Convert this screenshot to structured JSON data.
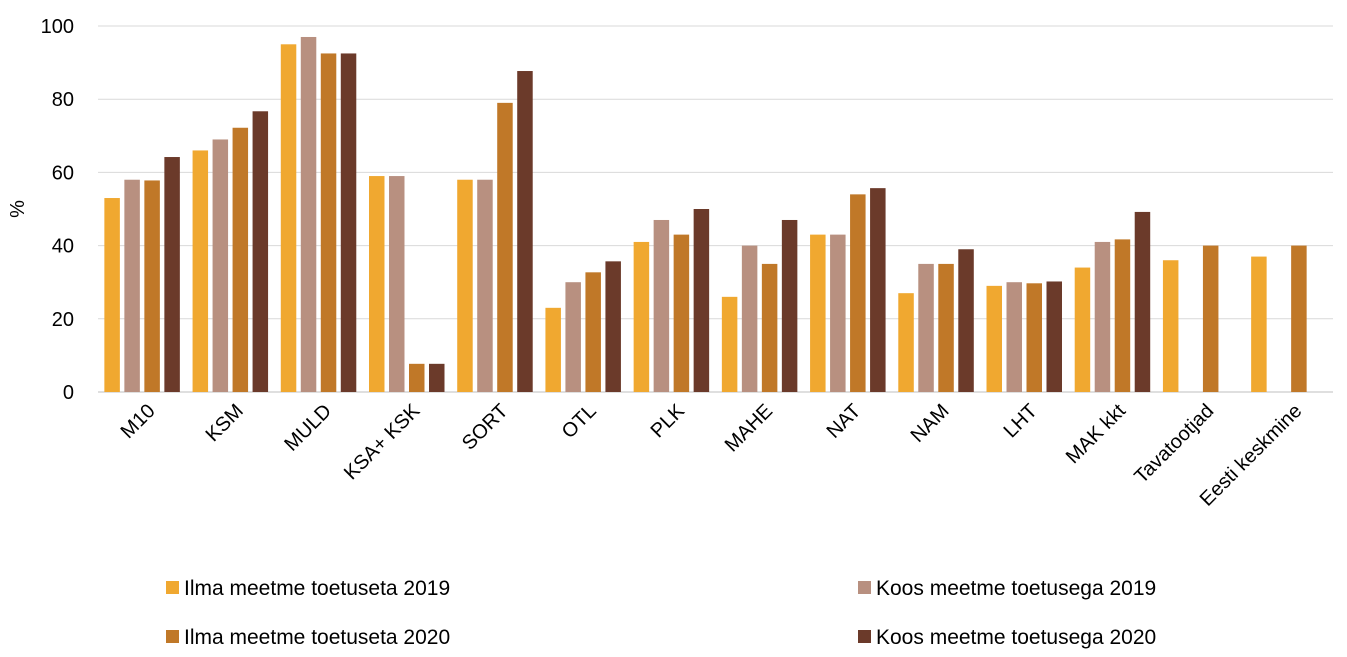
{
  "chart_data": {
    "type": "bar",
    "title": "",
    "xlabel": "",
    "ylabel": "%",
    "ylim": [
      0,
      100
    ],
    "yticks": [
      0,
      20,
      40,
      60,
      80,
      100
    ],
    "grid": true,
    "legend_position": "bottom",
    "categories": [
      "M10",
      "KSM",
      "MULD",
      "KSA+ KSK",
      "SORT",
      "OTL",
      "PLK",
      "MAHE",
      "NAT",
      "NAM",
      "LHT",
      "MAK kkt",
      "Tavatootjad",
      "Eesti keskmine"
    ],
    "series": [
      {
        "name": "Ilma meetme toetuseta 2019",
        "color": "#F0A830",
        "values": [
          53,
          66,
          95,
          59,
          58,
          23,
          41,
          26,
          43,
          27,
          29,
          34,
          36,
          37
        ]
      },
      {
        "name": "Koos meetme toetusega 2019",
        "color": "#B89080",
        "values": [
          58,
          69,
          97,
          59,
          58,
          30,
          47,
          40,
          43,
          35,
          30,
          41,
          null,
          null
        ]
      },
      {
        "name": "Ilma meetme toetuseta 2020",
        "color": "#C07828",
        "values": [
          57.8,
          72.2,
          92.5,
          7.7,
          79,
          32.7,
          43,
          35,
          54,
          35,
          29.7,
          41.7,
          40,
          40
        ]
      },
      {
        "name": "Koos meetme toetusega 2020",
        "color": "#6B3A2A",
        "values": [
          64.2,
          76.7,
          92.5,
          7.7,
          87.7,
          35.7,
          50,
          47,
          55.7,
          39,
          30.2,
          49.2,
          null,
          null
        ]
      }
    ]
  }
}
